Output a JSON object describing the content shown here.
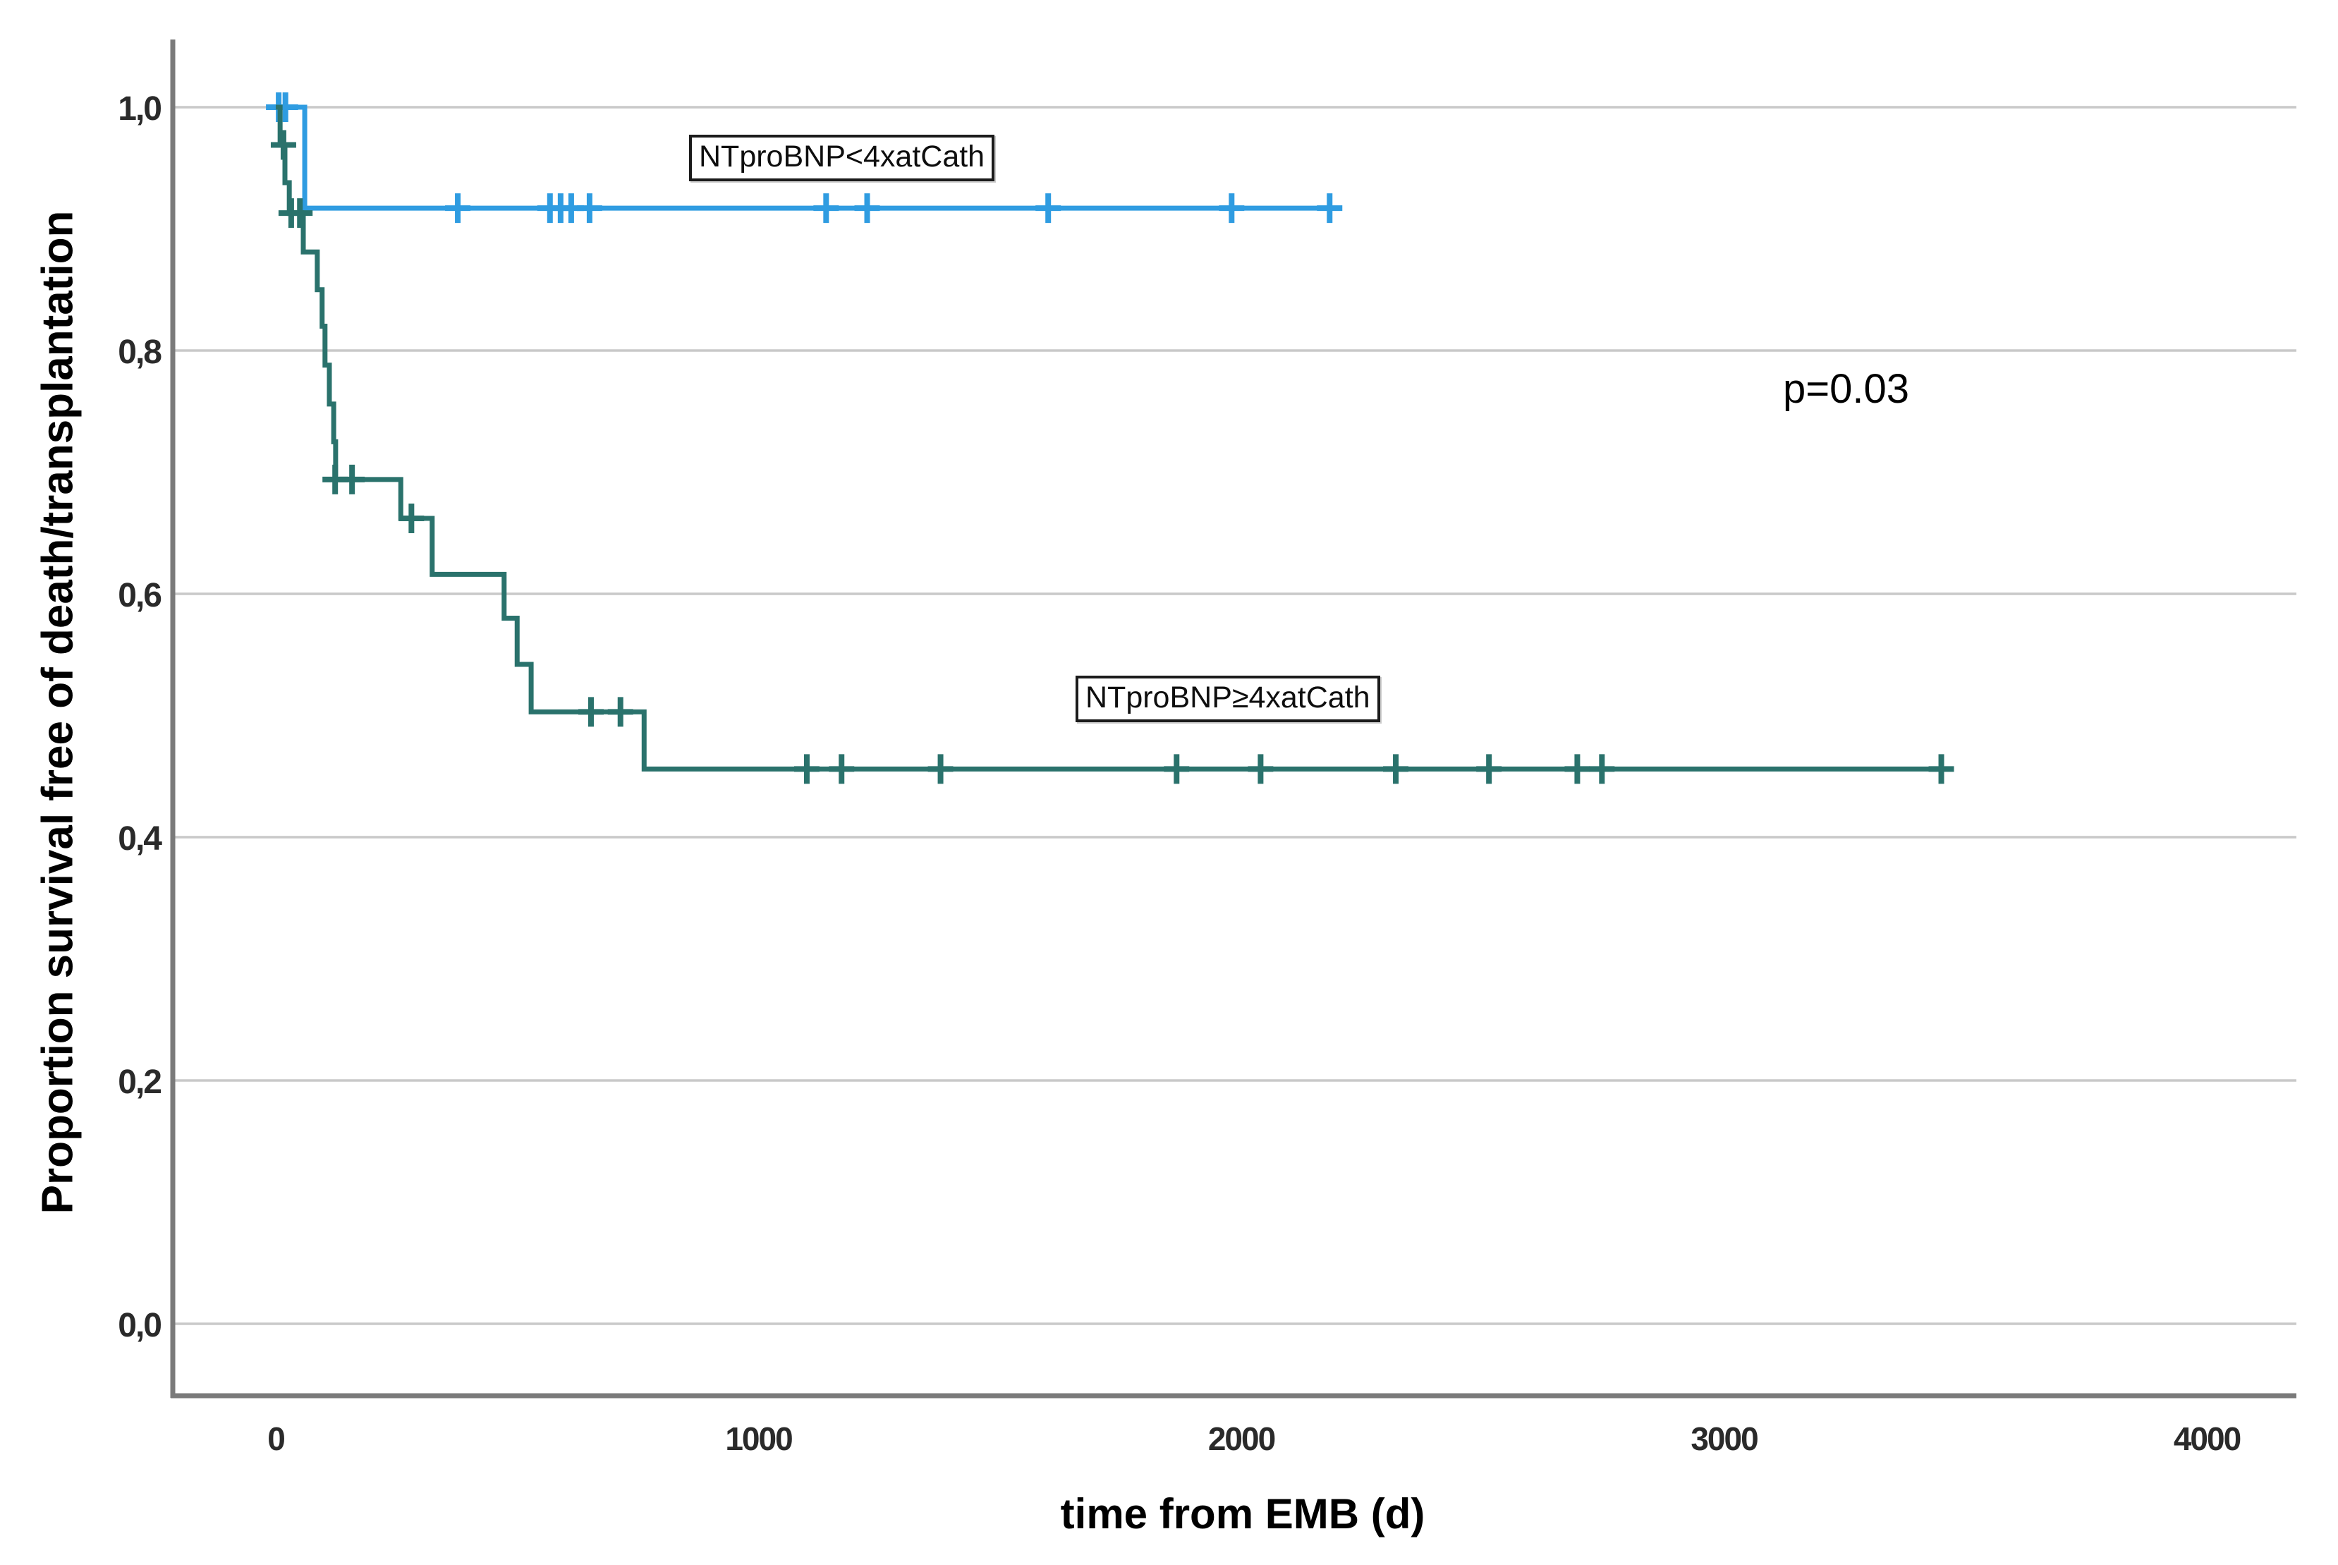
{
  "chart_data": {
    "type": "line",
    "subtype": "kaplan_meier_step",
    "title": "",
    "xlabel": "time from EMB (d)",
    "ylabel": "Proportion survival free of death/transplantation",
    "xlim": [
      -210,
      4180
    ],
    "ylim": [
      0.0,
      1.05
    ],
    "grid": "horizontal-only",
    "legend_position": "inline-label-boxes",
    "grid_color": "#c9c9c9",
    "axis_color": "#7a7a7a",
    "x_ticks": [
      {
        "label": "0",
        "value": 0
      },
      {
        "label": "1000",
        "value": 1000
      },
      {
        "label": "2000",
        "value": 2000
      },
      {
        "label": "3000",
        "value": 3000
      },
      {
        "label": "4000",
        "value": 4000
      }
    ],
    "y_ticks": [
      {
        "label": "1,0",
        "value": 1.0
      },
      {
        "label": "0,8",
        "value": 0.8
      },
      {
        "label": "0,6",
        "value": 0.6
      },
      {
        "label": "0,4",
        "value": 0.4
      },
      {
        "label": "0,2",
        "value": 0.2
      },
      {
        "label": "0,0",
        "value": 0.0
      }
    ],
    "annotations": [
      {
        "text": "p=0.03"
      }
    ],
    "series": [
      {
        "name": "NTproBNP<4xatCath",
        "label_box_text": "NTproBNP<4xatCath",
        "color": "#2f9ce1",
        "steps": [
          [
            0,
            1.0
          ],
          [
            60,
            0.917
          ]
        ],
        "end_t": 2205,
        "censors": [
          [
            6,
            1.0
          ],
          [
            20,
            1.0
          ],
          [
            377,
            0.917
          ],
          [
            568,
            0.917
          ],
          [
            590,
            0.917
          ],
          [
            612,
            0.917
          ],
          [
            650,
            0.917
          ],
          [
            1140,
            0.917
          ],
          [
            1225,
            0.917
          ],
          [
            1600,
            0.917
          ],
          [
            1980,
            0.917
          ],
          [
            2183,
            0.917
          ]
        ]
      },
      {
        "name": "NTproBNP≥4xatCath",
        "label_box_text": "NTproBNP≥4xatCath",
        "color": "#2a726c",
        "steps": [
          [
            0,
            1.0
          ],
          [
            9,
            0.969
          ],
          [
            19,
            0.938
          ],
          [
            28,
            0.913
          ],
          [
            57,
            0.881
          ],
          [
            86,
            0.85
          ],
          [
            96,
            0.82
          ],
          [
            102,
            0.788
          ],
          [
            111,
            0.756
          ],
          [
            120,
            0.725
          ],
          [
            124,
            0.694
          ],
          [
            259,
            0.662
          ],
          [
            324,
            0.616
          ],
          [
            473,
            0.58
          ],
          [
            500,
            0.542
          ],
          [
            529,
            0.503
          ],
          [
            763,
            0.456
          ]
        ],
        "end_t": 3471,
        "censors": [
          [
            16,
            0.969
          ],
          [
            32,
            0.913
          ],
          [
            50,
            0.913
          ],
          [
            123,
            0.694
          ],
          [
            158,
            0.694
          ],
          [
            281,
            0.662
          ],
          [
            653,
            0.503
          ],
          [
            714,
            0.503
          ],
          [
            1100,
            0.456
          ],
          [
            1172,
            0.456
          ],
          [
            1377,
            0.456
          ],
          [
            1866,
            0.456
          ],
          [
            2040,
            0.456
          ],
          [
            2320,
            0.456
          ],
          [
            2513,
            0.456
          ],
          [
            2696,
            0.456
          ],
          [
            2747,
            0.456
          ],
          [
            3450,
            0.456
          ]
        ]
      }
    ]
  }
}
